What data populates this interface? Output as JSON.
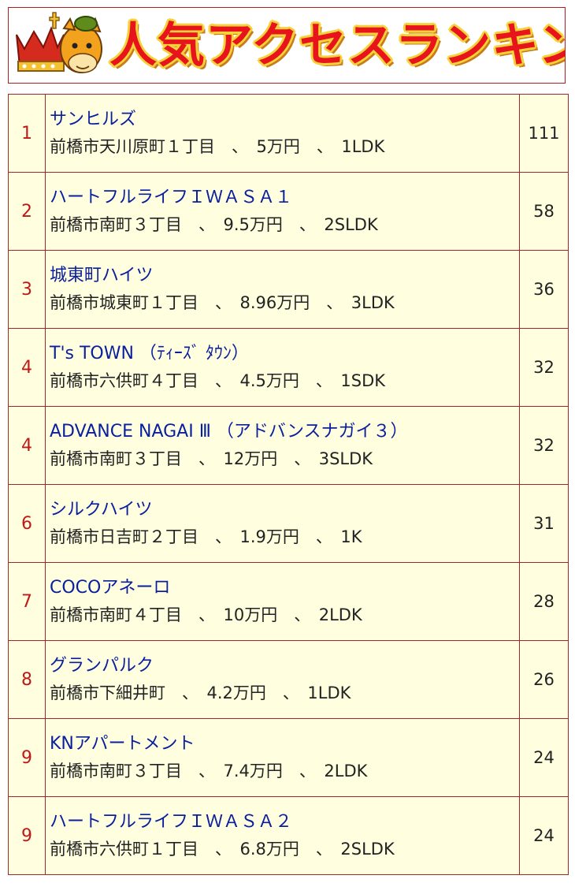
{
  "banner": {
    "title": "人気アクセスランキング",
    "mascot_icon": "crowned-horse-mascot-icon",
    "title_color": "#e8141c",
    "outline_color": "#f6d23a"
  },
  "colors": {
    "rank_text": "#c01818",
    "name_text": "#0a1f9c",
    "cell_bg": "#ffffe0",
    "border": "#a02828"
  },
  "ranking": [
    {
      "rank": "1",
      "name": "サンヒルズ",
      "address": "前橋市天川原町１丁目",
      "price": "5万円",
      "layout": "1LDK",
      "count": "111"
    },
    {
      "rank": "2",
      "name": "ハートフルライフＩＷＡＳＡ１",
      "address": "前橋市南町３丁目",
      "price": "9.5万円",
      "layout": "2SLDK",
      "count": "58"
    },
    {
      "rank": "3",
      "name": "城東町ハイツ",
      "address": "前橋市城東町１丁目",
      "price": "8.96万円",
      "layout": "3LDK",
      "count": "36"
    },
    {
      "rank": "4",
      "name": "T's TOWN （ﾃｨｰｽﾞ ﾀｳﾝ）",
      "address": "前橋市六供町４丁目",
      "price": "4.5万円",
      "layout": "1SDK",
      "count": "32"
    },
    {
      "rank": "4",
      "name": "ADVANCE NAGAI Ⅲ （アドバンスナガイ３）",
      "address": "前橋市南町３丁目",
      "price": "12万円",
      "layout": "3SLDK",
      "count": "32"
    },
    {
      "rank": "6",
      "name": "シルクハイツ",
      "address": "前橋市日吉町２丁目",
      "price": "1.9万円",
      "layout": "1K",
      "count": "31"
    },
    {
      "rank": "7",
      "name": "COCOアネーロ",
      "address": "前橋市南町４丁目",
      "price": "10万円",
      "layout": "2LDK",
      "count": "28"
    },
    {
      "rank": "8",
      "name": "グランパルク",
      "address": "前橋市下細井町",
      "price": "4.2万円",
      "layout": "1LDK",
      "count": "26"
    },
    {
      "rank": "9",
      "name": "KNアパートメント",
      "address": "前橋市南町３丁目",
      "price": "7.4万円",
      "layout": "2LDK",
      "count": "24"
    },
    {
      "rank": "9",
      "name": "ハートフルライフＩＷＡＳＡ２",
      "address": "前橋市六供町１丁目",
      "price": "6.8万円",
      "layout": "2SLDK",
      "count": "24"
    }
  ]
}
